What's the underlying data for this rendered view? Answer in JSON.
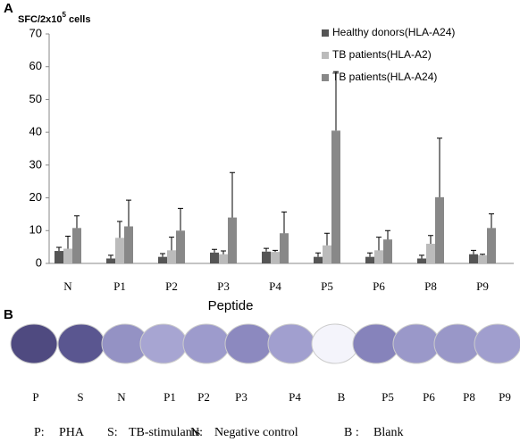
{
  "panel_labels": [
    "A",
    "B"
  ],
  "chart_data": {
    "type": "bar",
    "y_label": {
      "base": "SFC/2x10",
      "exponent": "5",
      "unit": "cells"
    },
    "x_label": "Peptide",
    "categories": [
      "N",
      "P1",
      "P2",
      "P3",
      "P4",
      "P5",
      "P6",
      "P8",
      "P9"
    ],
    "series": [
      {
        "name": "Healthy donors(HLA-A24)",
        "color": "#555555",
        "values": [
          3.8,
          1.5,
          2,
          3.3,
          3.6,
          2,
          2,
          1.5,
          2.8
        ],
        "errors": [
          1.1,
          1,
          1,
          1,
          1,
          1.2,
          1.2,
          1,
          1.2
        ]
      },
      {
        "name": "TB patients(HLA-A2)",
        "color": "#bbbbbb",
        "values": [
          4.5,
          7.8,
          4,
          2.8,
          3.5,
          5.5,
          4,
          6,
          2.5
        ],
        "errors": [
          3.8,
          5,
          4,
          1,
          0.5,
          3.7,
          4,
          2.5,
          0.3
        ]
      },
      {
        "name": "TB patients(HLA-A24)",
        "color": "#888888",
        "values": [
          10.8,
          11.3,
          10,
          14,
          9.2,
          40.5,
          7.3,
          20.2,
          10.8
        ],
        "errors": [
          3.7,
          8,
          6.8,
          13.7,
          6.5,
          18,
          2.7,
          18,
          4.3
        ]
      }
    ],
    "ylim": [
      0,
      70
    ],
    "yticks": [
      0,
      10,
      20,
      30,
      40,
      50,
      60,
      70
    ],
    "grid": false,
    "legend": "top-right"
  },
  "wells": {
    "labels": [
      "P",
      "S",
      "N",
      "P1",
      "P2",
      "P3",
      "P4",
      "B",
      "P5",
      "P6",
      "P8",
      "P9"
    ],
    "legend": [
      {
        "key": "P:",
        "text": "PHA"
      },
      {
        "key": "S:",
        "text": "TB-stimulants"
      },
      {
        "key": "N:",
        "text": "Negative control"
      },
      {
        "key": "B :",
        "text": "Blank"
      }
    ]
  }
}
